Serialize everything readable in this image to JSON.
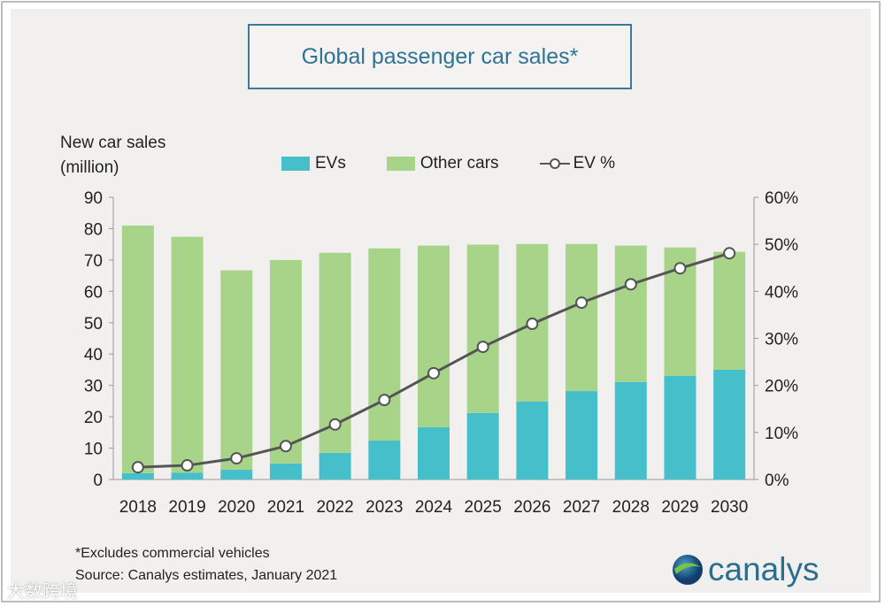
{
  "chart_data": {
    "type": "bar",
    "title": "Global passenger car sales*",
    "ylabel": "New car sales (million)",
    "ylabel_lines": [
      "New car sales",
      "(million)"
    ],
    "ylim": [
      0,
      90
    ],
    "y2lim": [
      0,
      60
    ],
    "yticks": [
      "0",
      "10",
      "20",
      "30",
      "40",
      "50",
      "60",
      "70",
      "80",
      "90"
    ],
    "y2ticks": [
      "0%",
      "10%",
      "20%",
      "30%",
      "40%",
      "50%",
      "60%"
    ],
    "categories": [
      "2018",
      "2019",
      "2020",
      "2021",
      "2022",
      "2023",
      "2024",
      "2025",
      "2026",
      "2027",
      "2028",
      "2029",
      "2030"
    ],
    "legend": [
      "EVs",
      "Other cars",
      "EV %"
    ],
    "legend_position": "top",
    "stacked": true,
    "series": [
      {
        "name": "EVs",
        "type": "bar",
        "color": "#45bfca",
        "values": [
          2,
          2.2,
          3.1,
          5.1,
          8.5,
          12.4,
          16.7,
          21.2,
          24.9,
          28.2,
          31.1,
          33,
          35
        ]
      },
      {
        "name": "Other cars",
        "type": "bar",
        "color": "#a8d48a",
        "values": [
          79,
          75.2,
          63.6,
          64.9,
          63.8,
          61.3,
          57.9,
          53.7,
          50.2,
          46.9,
          43.5,
          41,
          37.6
        ]
      },
      {
        "name": "EV %",
        "type": "line",
        "axis": "right",
        "color": "#555555",
        "values": [
          2.6,
          3.0,
          4.5,
          7.1,
          11.7,
          16.9,
          22.6,
          28.2,
          33.1,
          37.6,
          41.5,
          44.9,
          48.1
        ]
      }
    ],
    "footnote": "*Excludes commercial vehicles",
    "source": "Source: Canalys estimates, January 2021"
  },
  "brand": "canalys",
  "watermark": "大数跨境"
}
